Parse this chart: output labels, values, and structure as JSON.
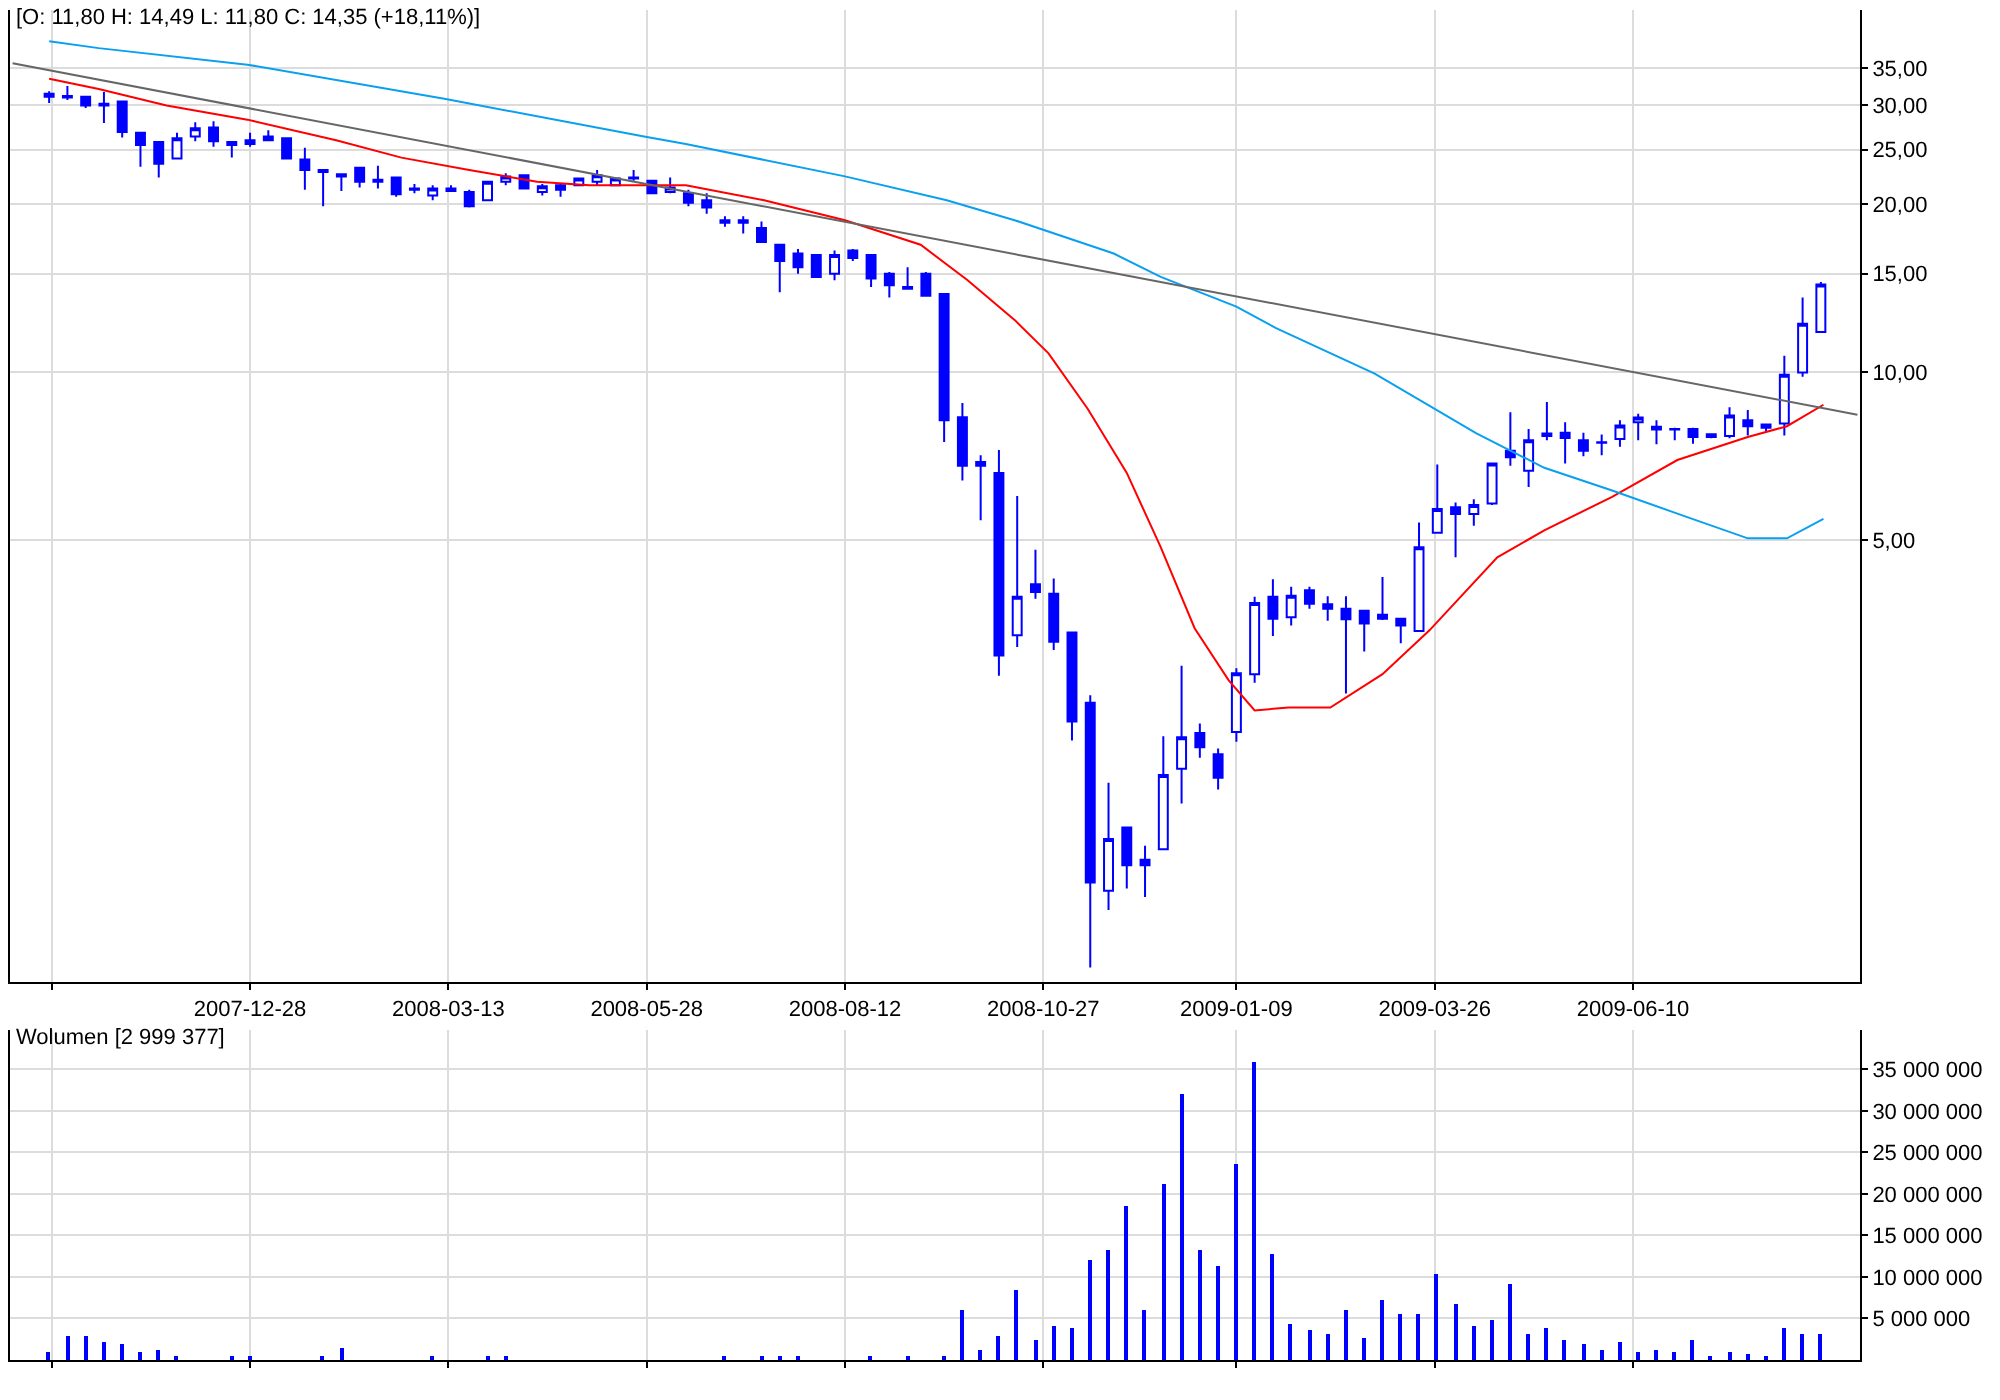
{
  "chart_data": [
    {
      "type": "candlestick",
      "title": "[O: 11,80 H: 14,49 L: 11,80 C: 14,35 (+18,11%)]",
      "color": "#0000ff",
      "log": true,
      "grid": true,
      "xlim": [
        "2007-09-27",
        "2009-09-05"
      ],
      "xticks": [
        {
          "value": "2007-10-13",
          "label": null
        },
        {
          "value": "2007-12-28",
          "label": "2007-12-28"
        },
        {
          "value": "2008-03-13",
          "label": "2008-03-13"
        },
        {
          "value": "2008-05-28",
          "label": "2008-05-28"
        },
        {
          "value": "2008-08-12",
          "label": "2008-08-12"
        },
        {
          "value": "2008-10-27",
          "label": "2008-10-27"
        },
        {
          "value": "2009-01-09",
          "label": "2009-01-09"
        },
        {
          "value": "2009-03-26",
          "label": "2009-03-26"
        },
        {
          "value": "2009-06-10",
          "label": "2009-06-10"
        }
      ],
      "ylim": [
        0.81,
        44.5
      ],
      "yticks": [
        {
          "value": 5,
          "label": "5,00"
        },
        {
          "value": 10,
          "label": "10,00"
        },
        {
          "value": 15,
          "label": "15,00"
        },
        {
          "value": 20,
          "label": "20,00"
        },
        {
          "value": 25,
          "label": "25,00"
        },
        {
          "value": 30,
          "label": "30,00"
        },
        {
          "value": 35,
          "label": "35,00"
        }
      ],
      "x": [
        "2007-10-12",
        "2007-10-19",
        "2007-10-26",
        "2007-11-02",
        "2007-11-09",
        "2007-11-16",
        "2007-11-23",
        "2007-11-30",
        "2007-12-07",
        "2007-12-14",
        "2007-12-21",
        "2007-12-28",
        "2008-01-04",
        "2008-01-11",
        "2008-01-18",
        "2008-01-25",
        "2008-02-01",
        "2008-02-08",
        "2008-02-15",
        "2008-02-22",
        "2008-02-29",
        "2008-03-07",
        "2008-03-14",
        "2008-03-21",
        "2008-03-28",
        "2008-04-04",
        "2008-04-11",
        "2008-04-18",
        "2008-04-25",
        "2008-05-02",
        "2008-05-09",
        "2008-05-16",
        "2008-05-23",
        "2008-05-30",
        "2008-06-06",
        "2008-06-13",
        "2008-06-20",
        "2008-06-27",
        "2008-07-04",
        "2008-07-11",
        "2008-07-18",
        "2008-07-25",
        "2008-08-01",
        "2008-08-08",
        "2008-08-15",
        "2008-08-22",
        "2008-08-29",
        "2008-09-05",
        "2008-09-12",
        "2008-09-19",
        "2008-09-26",
        "2008-10-03",
        "2008-10-10",
        "2008-10-17",
        "2008-10-24",
        "2008-10-31",
        "2008-11-07",
        "2008-11-14",
        "2008-11-21",
        "2008-11-28",
        "2008-12-05",
        "2008-12-12",
        "2008-12-19",
        "2008-12-26",
        "2009-01-02",
        "2009-01-09",
        "2009-01-16",
        "2009-01-23",
        "2009-01-30",
        "2009-02-06",
        "2009-02-13",
        "2009-02-20",
        "2009-02-27",
        "2009-03-06",
        "2009-03-13",
        "2009-03-20",
        "2009-03-27",
        "2009-04-03",
        "2009-04-10",
        "2009-04-17",
        "2009-04-24",
        "2009-05-01",
        "2009-05-08",
        "2009-05-15",
        "2009-05-22",
        "2009-05-29",
        "2009-06-05",
        "2009-06-12",
        "2009-06-19",
        "2009-06-26",
        "2009-07-03",
        "2009-07-10",
        "2009-07-17",
        "2009-07-24",
        "2009-07-31",
        "2009-08-07",
        "2009-08-14",
        "2009-08-21"
      ],
      "ohlc": [
        [
          31.5,
          31.8,
          30.3,
          31.1
        ],
        [
          31.2,
          32.5,
          30.7,
          31.0
        ],
        [
          31.1,
          31.1,
          29.7,
          30.0
        ],
        [
          30.2,
          31.7,
          27.9,
          30.0
        ],
        [
          30.5,
          30.5,
          26.3,
          26.9
        ],
        [
          26.8,
          26.8,
          23.3,
          25.5
        ],
        [
          25.8,
          25.8,
          22.3,
          23.6
        ],
        [
          24.1,
          26.8,
          24.1,
          26.2
        ],
        [
          26.4,
          28.0,
          25.9,
          27.3
        ],
        [
          27.4,
          28.1,
          25.3,
          25.9
        ],
        [
          25.8,
          25.8,
          24.2,
          25.5
        ],
        [
          25.6,
          26.8,
          25.3,
          26.0
        ],
        [
          26.0,
          27.1,
          25.9,
          26.4
        ],
        [
          26.2,
          26.2,
          24.0,
          24.1
        ],
        [
          24.0,
          25.2,
          21.2,
          23.0
        ],
        [
          23.0,
          23.0,
          19.8,
          22.8
        ],
        [
          22.6,
          22.6,
          21.1,
          22.4
        ],
        [
          23.2,
          23.2,
          21.4,
          21.9
        ],
        [
          22.1,
          23.4,
          21.3,
          21.9
        ],
        [
          22.3,
          22.3,
          20.6,
          20.8
        ],
        [
          21.2,
          21.7,
          20.9,
          21.3
        ],
        [
          20.7,
          21.6,
          20.3,
          21.3
        ],
        [
          21.1,
          21.6,
          21.0,
          21.3
        ],
        [
          21.0,
          21.2,
          19.7,
          19.8
        ],
        [
          20.3,
          21.9,
          20.3,
          21.9
        ],
        [
          21.9,
          22.7,
          21.6,
          22.4
        ],
        [
          22.5,
          22.5,
          21.3,
          21.3
        ],
        [
          21.0,
          21.7,
          20.7,
          21.5
        ],
        [
          21.6,
          21.8,
          20.6,
          21.2
        ],
        [
          21.6,
          22.3,
          21.5,
          22.2
        ],
        [
          21.9,
          23.0,
          21.6,
          22.5
        ],
        [
          21.6,
          22.3,
          21.6,
          22.2
        ],
        [
          22.3,
          23.0,
          22.0,
          22.2
        ],
        [
          22.0,
          22.1,
          20.9,
          20.9
        ],
        [
          21.0,
          22.3,
          20.9,
          21.4
        ],
        [
          20.9,
          21.2,
          19.8,
          20.1
        ],
        [
          20.3,
          20.9,
          19.2,
          19.7
        ],
        [
          18.7,
          19.0,
          18.2,
          18.5
        ],
        [
          18.7,
          19.0,
          17.7,
          18.5
        ],
        [
          18.1,
          18.6,
          17.1,
          17.1
        ],
        [
          16.9,
          16.9,
          13.9,
          15.8
        ],
        [
          16.3,
          16.6,
          15.0,
          15.4
        ],
        [
          16.2,
          16.2,
          14.8,
          14.8
        ],
        [
          15.0,
          16.5,
          14.6,
          16.2
        ],
        [
          16.5,
          16.6,
          15.8,
          16.0
        ],
        [
          16.2,
          16.2,
          14.2,
          14.7
        ],
        [
          15.0,
          15.1,
          13.6,
          14.3
        ],
        [
          14.2,
          15.4,
          14.1,
          14.1
        ],
        [
          15.0,
          15.1,
          13.7,
          13.7
        ],
        [
          13.8,
          13.8,
          7.5,
          8.2
        ],
        [
          8.3,
          8.8,
          6.4,
          6.8
        ],
        [
          6.8,
          7.1,
          5.43,
          6.9
        ],
        [
          6.6,
          7.25,
          2.86,
          3.11
        ],
        [
          3.38,
          6.0,
          3.22,
          3.96
        ],
        [
          4.17,
          4.81,
          3.93,
          4.04
        ],
        [
          4.01,
          4.27,
          3.18,
          3.29
        ],
        [
          3.42,
          3.42,
          2.19,
          2.37
        ],
        [
          2.56,
          2.64,
          0.86,
          1.22
        ],
        [
          1.18,
          1.84,
          1.09,
          1.46
        ],
        [
          1.53,
          1.53,
          1.19,
          1.31
        ],
        [
          1.34,
          1.42,
          1.15,
          1.31
        ],
        [
          1.4,
          2.23,
          1.4,
          1.9
        ],
        [
          1.95,
          2.98,
          1.69,
          2.22
        ],
        [
          2.26,
          2.35,
          2.04,
          2.13
        ],
        [
          2.07,
          2.12,
          1.79,
          1.88
        ],
        [
          2.27,
          2.95,
          2.18,
          2.89
        ],
        [
          2.88,
          3.96,
          2.78,
          3.86
        ],
        [
          3.96,
          4.26,
          3.37,
          3.62
        ],
        [
          3.64,
          4.13,
          3.52,
          3.98
        ],
        [
          4.07,
          4.13,
          3.77,
          3.85
        ],
        [
          3.84,
          3.97,
          3.59,
          3.77
        ],
        [
          3.77,
          3.97,
          2.66,
          3.61
        ],
        [
          3.74,
          3.74,
          3.16,
          3.55
        ],
        [
          3.62,
          4.3,
          3.6,
          3.68
        ],
        [
          3.62,
          3.62,
          3.27,
          3.52
        ],
        [
          3.44,
          5.38,
          3.44,
          4.86
        ],
        [
          5.16,
          6.83,
          5.16,
          5.69
        ],
        [
          5.73,
          5.84,
          4.66,
          5.57
        ],
        [
          5.57,
          5.92,
          5.31,
          5.78
        ],
        [
          5.82,
          6.86,
          5.78,
          6.86
        ],
        [
          7.23,
          8.47,
          6.8,
          7.04
        ],
        [
          6.66,
          7.91,
          6.23,
          7.55
        ],
        [
          7.76,
          8.84,
          7.55,
          7.68
        ],
        [
          7.79,
          8.13,
          6.86,
          7.62
        ],
        [
          7.55,
          7.79,
          7.07,
          7.23
        ],
        [
          7.49,
          7.73,
          7.1,
          7.47
        ],
        [
          7.59,
          8.2,
          7.35,
          8.02
        ],
        [
          8.13,
          8.42,
          7.55,
          8.29
        ],
        [
          7.98,
          8.2,
          7.43,
          7.89
        ],
        [
          7.91,
          7.95,
          7.55,
          7.89
        ],
        [
          7.91,
          7.95,
          7.44,
          7.65
        ],
        [
          7.74,
          7.76,
          7.61,
          7.65
        ],
        [
          7.68,
          8.65,
          7.61,
          8.36
        ],
        [
          8.2,
          8.55,
          7.7,
          8.0
        ],
        [
          8.06,
          8.06,
          7.84,
          7.95
        ],
        [
          8.09,
          10.7,
          7.7,
          9.89
        ],
        [
          9.98,
          13.6,
          9.81,
          12.2
        ],
        [
          11.8,
          14.49,
          11.8,
          14.35
        ]
      ],
      "series": [
        {
          "type": "line",
          "color": "#ff0000",
          "x": [
            "2007-10-12",
            "2007-10-31",
            "2007-11-26",
            "2007-12-27",
            "2008-01-30",
            "2008-02-24",
            "2008-03-21",
            "2008-04-16",
            "2008-05-06",
            "2008-06-12",
            "2008-07-12",
            "2008-08-12",
            "2008-09-10",
            "2008-09-28",
            "2008-10-16",
            "2008-10-29",
            "2008-11-13",
            "2008-11-28",
            "2008-12-11",
            "2008-12-24",
            "2009-01-06",
            "2009-01-16",
            "2009-01-29",
            "2009-02-14",
            "2009-03-06",
            "2009-03-24",
            "2009-04-19",
            "2009-05-07",
            "2009-06-02",
            "2009-06-27",
            "2009-07-24",
            "2009-08-08",
            "2009-08-22"
          ],
          "values": [
            33.5,
            32.1,
            30.0,
            28.3,
            26.0,
            24.2,
            23.0,
            21.9,
            21.6,
            21.6,
            20.3,
            18.7,
            16.9,
            14.6,
            12.4,
            10.8,
            8.6,
            6.6,
            4.86,
            3.48,
            2.81,
            2.48,
            2.51,
            2.51,
            2.88,
            3.45,
            4.66,
            5.21,
            5.98,
            6.96,
            7.65,
            8.0,
            8.74
          ]
        },
        {
          "type": "line",
          "color": "#0aa0f0",
          "x": [
            "2007-10-12",
            "2007-10-31",
            "2007-12-27",
            "2008-03-12",
            "2008-05-27",
            "2008-06-12",
            "2008-08-12",
            "2008-09-20",
            "2008-10-16",
            "2008-11-23",
            "2008-12-11",
            "2009-01-09",
            "2009-01-24",
            "2009-03-03",
            "2009-04-11",
            "2009-05-07",
            "2009-06-02",
            "2009-06-27",
            "2009-07-24",
            "2009-08-08",
            "2009-08-22"
          ],
          "values": [
            39.1,
            38.0,
            35.5,
            30.8,
            26.4,
            25.6,
            22.4,
            20.3,
            18.7,
            16.3,
            14.8,
            13.1,
            12.0,
            9.94,
            7.77,
            6.74,
            6.14,
            5.58,
            5.04,
            5.04,
            5.46
          ]
        },
        {
          "type": "line",
          "color": "#666666",
          "x": [
            "2007-09-28",
            "2009-09-04"
          ],
          "values": [
            35.7,
            8.39
          ]
        }
      ]
    },
    {
      "type": "bar",
      "title": "Wolumen [2 999 377]",
      "color": "#0000ff",
      "grid": true,
      "tick_labels": "y",
      "xlim": [
        "2007-09-27",
        "2009-09-05"
      ],
      "xticks": [
        {
          "value": "2007-10-13",
          "label": null
        },
        {
          "value": "2007-12-28",
          "label": null
        },
        {
          "value": "2008-03-13",
          "label": null
        },
        {
          "value": "2008-05-28",
          "label": null
        },
        {
          "value": "2008-08-12",
          "label": null
        },
        {
          "value": "2008-10-27",
          "label": null
        },
        {
          "value": "2009-01-09",
          "label": null
        },
        {
          "value": "2009-03-26",
          "label": null
        },
        {
          "value": "2009-06-10",
          "label": null
        }
      ],
      "ylim": [
        0,
        39700000
      ],
      "yticks": [
        {
          "value": 5000000,
          "label": "5 000 000"
        },
        {
          "value": 10000000,
          "label": "10 000 000"
        },
        {
          "value": 15000000,
          "label": "15 000 000"
        },
        {
          "value": 20000000,
          "label": "20 000 000"
        },
        {
          "value": 25000000,
          "label": "25 000 000"
        },
        {
          "value": 30000000,
          "label": "30 000 000"
        },
        {
          "value": 35000000,
          "label": "35 000 000"
        }
      ],
      "x": [
        "2007-10-12",
        "2007-10-19",
        "2007-10-26",
        "2007-11-02",
        "2007-11-09",
        "2007-11-16",
        "2007-11-23",
        "2007-11-30",
        "2007-12-07",
        "2007-12-14",
        "2007-12-21",
        "2007-12-28",
        "2008-01-04",
        "2008-01-11",
        "2008-01-18",
        "2008-01-25",
        "2008-02-01",
        "2008-02-08",
        "2008-02-15",
        "2008-02-22",
        "2008-02-29",
        "2008-03-07",
        "2008-03-14",
        "2008-03-21",
        "2008-03-28",
        "2008-04-04",
        "2008-04-11",
        "2008-04-18",
        "2008-04-25",
        "2008-05-02",
        "2008-05-09",
        "2008-05-16",
        "2008-05-23",
        "2008-05-30",
        "2008-06-06",
        "2008-06-13",
        "2008-06-20",
        "2008-06-27",
        "2008-07-04",
        "2008-07-11",
        "2008-07-18",
        "2008-07-25",
        "2008-08-01",
        "2008-08-08",
        "2008-08-15",
        "2008-08-22",
        "2008-08-29",
        "2008-09-05",
        "2008-09-12",
        "2008-09-19",
        "2008-09-26",
        "2008-10-03",
        "2008-10-10",
        "2008-10-17",
        "2008-10-24",
        "2008-10-31",
        "2008-11-07",
        "2008-11-14",
        "2008-11-21",
        "2008-11-28",
        "2008-12-05",
        "2008-12-12",
        "2008-12-19",
        "2008-12-26",
        "2009-01-02",
        "2009-01-09",
        "2009-01-16",
        "2009-01-23",
        "2009-01-30",
        "2009-02-06",
        "2009-02-13",
        "2009-02-20",
        "2009-02-27",
        "2009-03-06",
        "2009-03-13",
        "2009-03-20",
        "2009-03-27",
        "2009-04-03",
        "2009-04-10",
        "2009-04-17",
        "2009-04-24",
        "2009-05-01",
        "2009-05-08",
        "2009-05-15",
        "2009-05-22",
        "2009-05-29",
        "2009-06-05",
        "2009-06-12",
        "2009-06-19",
        "2009-06-26",
        "2009-07-03",
        "2009-07-10",
        "2009-07-17",
        "2009-07-24",
        "2009-07-31",
        "2009-08-07",
        "2009-08-14",
        "2009-08-21"
      ],
      "values": [
        900000,
        2800000,
        2800000,
        2000000,
        1800000,
        800000,
        1100000,
        300000,
        null,
        null,
        300000,
        300000,
        null,
        null,
        null,
        300000,
        1300000,
        null,
        null,
        null,
        null,
        300000,
        null,
        null,
        300000,
        300000,
        null,
        null,
        null,
        null,
        null,
        null,
        null,
        null,
        null,
        null,
        null,
        300000,
        null,
        300000,
        300000,
        300000,
        null,
        null,
        null,
        300000,
        null,
        300000,
        null,
        300000,
        5900000,
        1100000,
        2800000,
        8300000,
        2300000,
        4000000,
        3700000,
        12100000,
        13100000,
        18400000,
        5900000,
        21200000,
        32000000,
        13100000,
        11200000,
        23600000,
        35900000,
        12600000,
        4200000,
        3500000,
        3000000,
        5900000,
        2500000,
        7100000,
        5400000,
        5600000,
        10400000,
        6800000,
        4000000,
        4700000,
        9000000,
        3200000,
        3700000,
        2300000,
        1800000,
        1100000,
        2000000,
        800000,
        1100000,
        800000,
        2300000,
        300000,
        800000,
        600000,
        300000,
        3700000,
        3200000,
        2999377
      ]
    }
  ]
}
